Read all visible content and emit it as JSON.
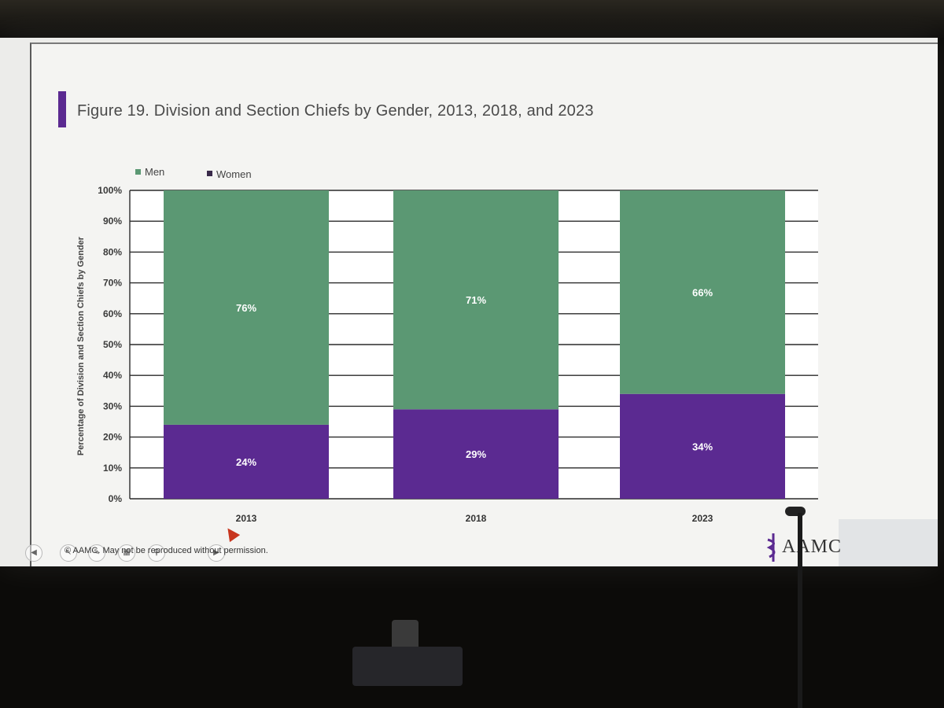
{
  "slide": {
    "title": "Figure 19. Division and Section Chiefs by Gender, 2013, 2018, and 2023",
    "footer": "© AAMC. May not be reproduced without permission.",
    "logo_text": "AAMC"
  },
  "colors": {
    "men": "#5b9873",
    "women": "#5b2a91",
    "title_accent": "#5b2a91"
  },
  "icons": {
    "nav": [
      "chevron-left-icon",
      "pointer-icon",
      "pen-icon",
      "slides-icon",
      "search-icon",
      "camera-icon"
    ],
    "logo": "caduceus-icon"
  },
  "chart_data": {
    "type": "bar",
    "stacked": true,
    "title": "Figure 19. Division and Section Chiefs by Gender, 2013, 2018, and 2023",
    "xlabel": "",
    "ylabel": "Percentage of Division and Section Chiefs by Gender",
    "ylim": [
      0,
      100
    ],
    "yticks": [
      "0%",
      "10%",
      "20%",
      "30%",
      "40%",
      "50%",
      "60%",
      "70%",
      "80%",
      "90%",
      "100%"
    ],
    "categories": [
      "2013",
      "2018",
      "2023"
    ],
    "series": [
      {
        "name": "Women",
        "values": [
          24,
          29,
          34
        ],
        "labels": [
          "24%",
          "29%",
          "34%"
        ]
      },
      {
        "name": "Men",
        "values": [
          76,
          71,
          66
        ],
        "labels": [
          "76%",
          "71%",
          "66%"
        ]
      }
    ],
    "legend": {
      "position": "top-left",
      "entries": [
        "Men",
        "Women"
      ]
    },
    "grid": true
  }
}
